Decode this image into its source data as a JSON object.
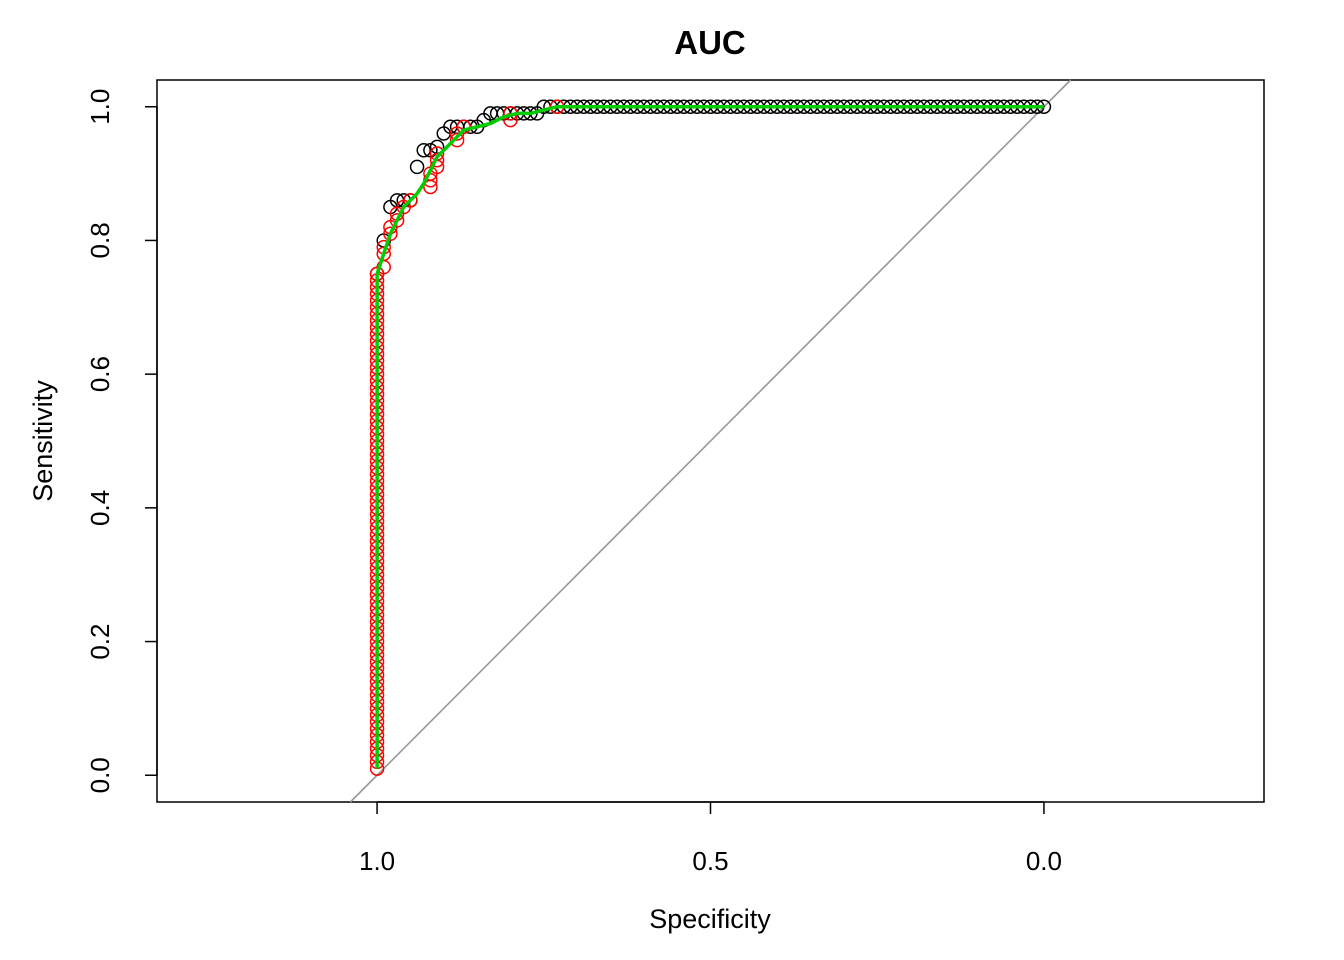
{
  "chart_data": {
    "type": "scatter",
    "title": "AUC",
    "xlabel": "Specificity",
    "ylabel": "Sensitivity",
    "x_reversed": true,
    "xlim": [
      1.33,
      -0.33
    ],
    "ylim": [
      -0.04,
      1.04
    ],
    "x_ticks": [
      1.0,
      0.5,
      0.0
    ],
    "x_tick_labels": [
      "1.0",
      "0.5",
      "0.0"
    ],
    "y_ticks": [
      0.0,
      0.2,
      0.4,
      0.6,
      0.8,
      1.0
    ],
    "y_tick_labels": [
      "0.0",
      "0.2",
      "0.4",
      "0.6",
      "0.8",
      "1.0"
    ],
    "grid": false,
    "reference_line": {
      "from": [
        1,
        0
      ],
      "to": [
        0,
        1
      ],
      "color": "#999999"
    },
    "colors": {
      "curve": "#00cc00",
      "black_points": "#000000",
      "red_points": "#ff0000"
    },
    "series": [
      {
        "color": "#000000",
        "x": [
          1.0,
          0.99,
          0.98,
          0.97,
          0.96,
          0.95,
          0.94,
          0.93,
          0.92,
          0.91,
          0.9,
          0.89,
          0.88,
          0.87,
          0.86,
          0.85,
          0.84,
          0.83,
          0.82,
          0.81,
          0.8,
          0.79,
          0.78,
          0.77,
          0.76,
          0.75,
          0.74,
          0.73,
          0.72,
          0.71,
          0.7,
          0.69,
          0.68,
          0.67,
          0.66,
          0.65,
          0.64,
          0.63,
          0.62,
          0.61,
          0.6,
          0.59,
          0.58,
          0.57,
          0.56,
          0.55,
          0.54,
          0.53,
          0.52,
          0.51,
          0.5,
          0.49,
          0.48,
          0.47,
          0.46,
          0.45,
          0.44,
          0.43,
          0.42,
          0.41,
          0.4,
          0.39,
          0.38,
          0.37,
          0.36,
          0.35,
          0.34,
          0.33,
          0.32,
          0.31,
          0.3,
          0.29,
          0.28,
          0.27,
          0.26,
          0.25,
          0.24,
          0.23,
          0.22,
          0.21,
          0.2,
          0.19,
          0.18,
          0.17,
          0.16,
          0.15,
          0.14,
          0.13,
          0.12,
          0.11,
          0.1,
          0.09,
          0.08,
          0.07,
          0.06,
          0.05,
          0.04,
          0.03,
          0.02,
          0.01,
          0.0
        ],
        "y": [
          0.75,
          0.8,
          0.85,
          0.86,
          0.86,
          0.86,
          0.91,
          0.935,
          0.935,
          0.94,
          0.96,
          0.97,
          0.97,
          0.97,
          0.97,
          0.97,
          0.98,
          0.99,
          0.99,
          0.99,
          0.99,
          0.99,
          0.99,
          0.99,
          0.99,
          1.0,
          1.0,
          1.0,
          1.0,
          1.0,
          1.0,
          1.0,
          1.0,
          1.0,
          1.0,
          1.0,
          1.0,
          1.0,
          1.0,
          1.0,
          1.0,
          1.0,
          1.0,
          1.0,
          1.0,
          1.0,
          1.0,
          1.0,
          1.0,
          1.0,
          1.0,
          1.0,
          1.0,
          1.0,
          1.0,
          1.0,
          1.0,
          1.0,
          1.0,
          1.0,
          1.0,
          1.0,
          1.0,
          1.0,
          1.0,
          1.0,
          1.0,
          1.0,
          1.0,
          1.0,
          1.0,
          1.0,
          1.0,
          1.0,
          1.0,
          1.0,
          1.0,
          1.0,
          1.0,
          1.0,
          1.0,
          1.0,
          1.0,
          1.0,
          1.0,
          1.0,
          1.0,
          1.0,
          1.0,
          1.0,
          1.0,
          1.0,
          1.0,
          1.0,
          1.0,
          1.0,
          1.0,
          1.0,
          1.0,
          1.0,
          1.0
        ]
      },
      {
        "color": "#ff0000",
        "x": [
          1.0,
          1.0,
          1.0,
          1.0,
          1.0,
          1.0,
          1.0,
          1.0,
          1.0,
          1.0,
          1.0,
          1.0,
          1.0,
          1.0,
          1.0,
          1.0,
          1.0,
          1.0,
          1.0,
          1.0,
          1.0,
          1.0,
          1.0,
          1.0,
          1.0,
          1.0,
          1.0,
          1.0,
          1.0,
          1.0,
          1.0,
          1.0,
          1.0,
          1.0,
          1.0,
          1.0,
          1.0,
          1.0,
          1.0,
          1.0,
          1.0,
          1.0,
          1.0,
          1.0,
          1.0,
          1.0,
          1.0,
          1.0,
          1.0,
          1.0,
          1.0,
          1.0,
          1.0,
          1.0,
          1.0,
          1.0,
          1.0,
          1.0,
          1.0,
          1.0,
          1.0,
          1.0,
          1.0,
          1.0,
          1.0,
          1.0,
          1.0,
          1.0,
          1.0,
          1.0,
          1.0,
          1.0,
          1.0,
          1.0,
          1.0,
          0.99,
          0.99,
          0.99,
          0.98,
          0.98,
          0.97,
          0.97,
          0.96,
          0.95,
          0.92,
          0.92,
          0.92,
          0.91,
          0.91,
          0.91,
          0.88,
          0.88,
          0.87,
          0.8,
          0.8,
          0.73
        ],
        "y": [
          0.01,
          0.02,
          0.03,
          0.04,
          0.05,
          0.06,
          0.07,
          0.08,
          0.09,
          0.1,
          0.11,
          0.12,
          0.13,
          0.14,
          0.15,
          0.16,
          0.17,
          0.18,
          0.19,
          0.2,
          0.21,
          0.22,
          0.23,
          0.24,
          0.25,
          0.26,
          0.27,
          0.28,
          0.29,
          0.3,
          0.31,
          0.32,
          0.33,
          0.34,
          0.35,
          0.36,
          0.37,
          0.38,
          0.39,
          0.4,
          0.41,
          0.42,
          0.43,
          0.44,
          0.45,
          0.46,
          0.47,
          0.48,
          0.49,
          0.5,
          0.51,
          0.52,
          0.53,
          0.54,
          0.55,
          0.56,
          0.57,
          0.58,
          0.59,
          0.6,
          0.61,
          0.62,
          0.63,
          0.64,
          0.65,
          0.66,
          0.67,
          0.68,
          0.69,
          0.7,
          0.71,
          0.72,
          0.73,
          0.74,
          0.75,
          0.76,
          0.78,
          0.79,
          0.81,
          0.82,
          0.83,
          0.84,
          0.85,
          0.86,
          0.88,
          0.89,
          0.9,
          0.91,
          0.92,
          0.93,
          0.95,
          0.96,
          0.97,
          0.98,
          0.99,
          1.0
        ]
      }
    ],
    "curve": {
      "color": "#00cc00",
      "x": [
        1.0,
        1.0,
        0.99,
        0.98,
        0.97,
        0.96,
        0.95,
        0.94,
        0.93,
        0.92,
        0.91,
        0.9,
        0.89,
        0.88,
        0.87,
        0.85,
        0.83,
        0.81,
        0.79,
        0.77,
        0.75,
        0.73,
        0.7,
        0.0
      ],
      "y": [
        0.01,
        0.75,
        0.78,
        0.81,
        0.83,
        0.85,
        0.86,
        0.87,
        0.885,
        0.905,
        0.925,
        0.935,
        0.945,
        0.955,
        0.965,
        0.97,
        0.975,
        0.985,
        0.99,
        0.99,
        0.995,
        1.0,
        1.0,
        1.0
      ]
    }
  }
}
